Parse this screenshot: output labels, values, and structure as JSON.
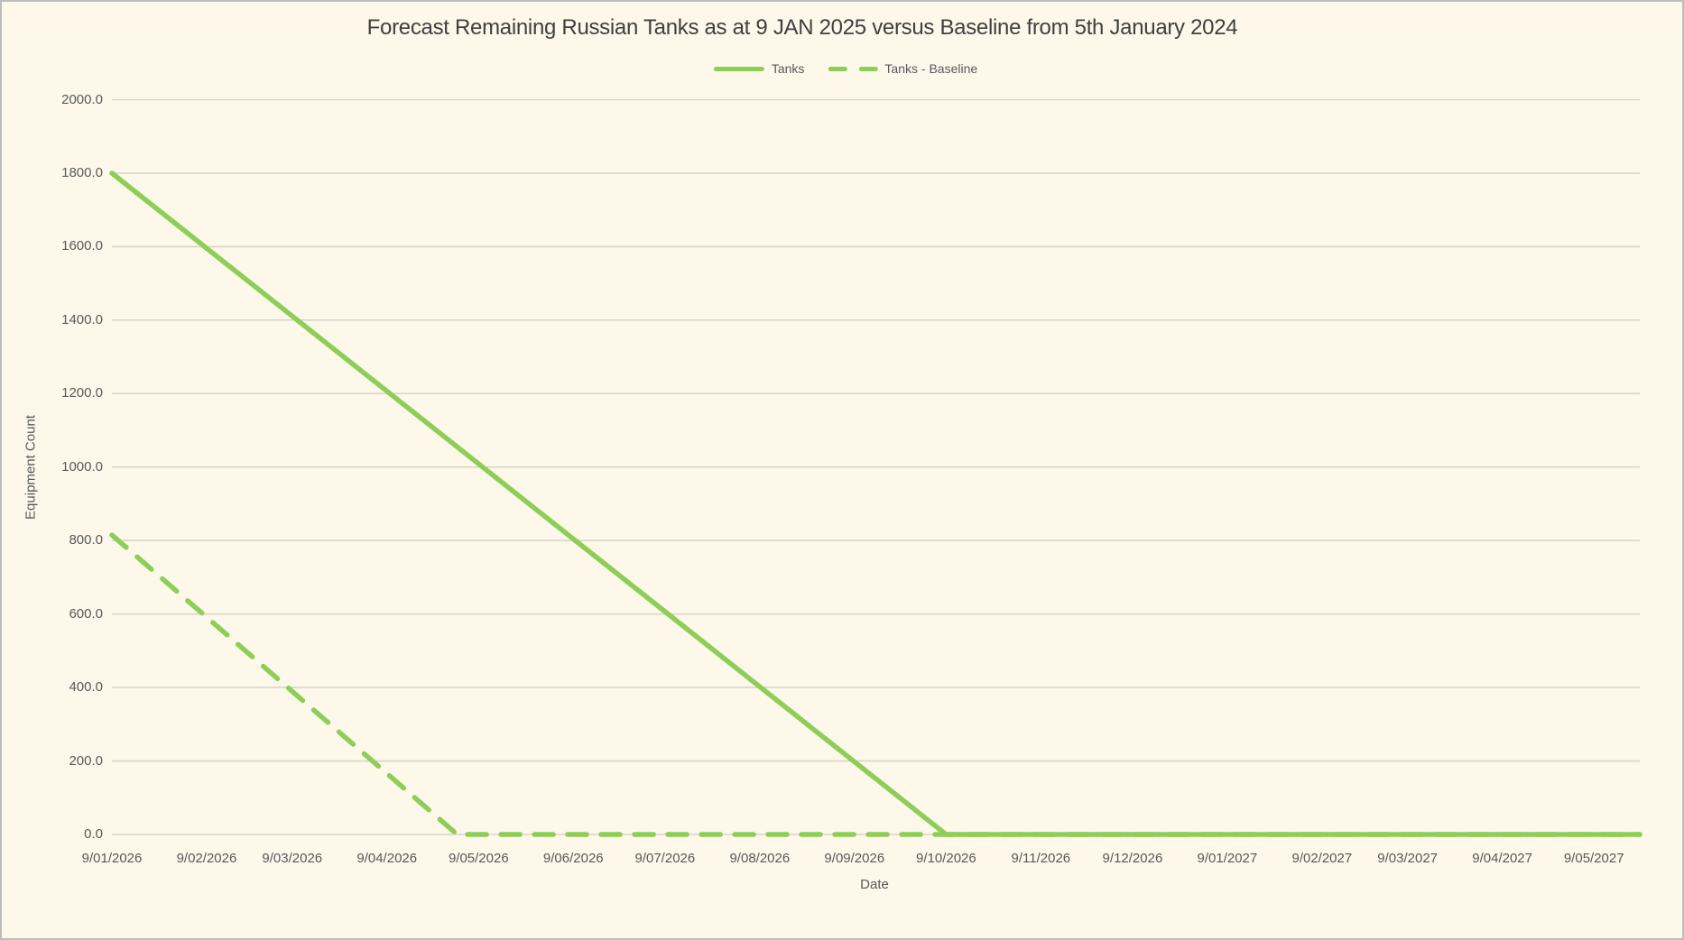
{
  "figure": {
    "title": "Forecast Remaining Russian Tanks as at 9 JAN 2025 versus Baseline from 5th January 2024"
  },
  "legend": {
    "items": [
      {
        "label": "Tanks",
        "style": "solid"
      },
      {
        "label": "Tanks - Baseline",
        "style": "dashed"
      }
    ]
  },
  "axes": {
    "x_title": "Date",
    "y_title": "Equipment Count"
  },
  "colors": {
    "series_green": "#8DCE58",
    "gridline": "#D8D5CE",
    "background": "#FDF8E9",
    "tick_text": "#595959",
    "title_text": "#404040"
  },
  "chart_data": {
    "type": "line",
    "title": "Forecast Remaining Russian Tanks as at 9 JAN 2025 versus Baseline from 5th January 2024",
    "xlabel": "Date",
    "ylabel": "Equipment Count",
    "ylim": [
      0,
      2000
    ],
    "ytick_step": 200,
    "ytick_labels": [
      "0.0",
      "200.0",
      "400.0",
      "600.0",
      "800.0",
      "1000.0",
      "1200.0",
      "1400.0",
      "1600.0",
      "1800.0",
      "2000.0"
    ],
    "grid": true,
    "legend_position": "top",
    "categories": [
      "9/01/2026",
      "9/02/2026",
      "9/03/2026",
      "9/04/2026",
      "9/05/2026",
      "9/06/2026",
      "9/07/2026",
      "9/08/2026",
      "9/09/2026",
      "9/10/2026",
      "9/11/2026",
      "9/12/2026",
      "9/01/2027",
      "9/02/2027",
      "9/03/2027",
      "9/04/2027",
      "9/05/2027"
    ],
    "tick_day_offsets": [
      0,
      31,
      59,
      90,
      120,
      151,
      181,
      212,
      243,
      273,
      304,
      334,
      365,
      396,
      424,
      455,
      485
    ],
    "day_span": [
      0,
      500
    ],
    "series": [
      {
        "name": "Tanks",
        "style": "solid",
        "color": "#8DCE58",
        "values": [
          1800,
          1596,
          1411,
          1207,
          1009,
          804,
          607,
          402,
          198,
          0,
          0,
          0,
          0,
          0,
          0,
          0,
          0
        ],
        "anchors_days": [
          [
            0,
            1800
          ],
          [
            273,
            0
          ],
          [
            500,
            0
          ]
        ]
      },
      {
        "name": "Tanks - Baseline",
        "style": "dashed",
        "color": "#8DCE58",
        "values": [
          815,
          591,
          390,
          166,
          0,
          0,
          0,
          0,
          0,
          0,
          0,
          0,
          0,
          0,
          0,
          0,
          0
        ],
        "anchors_days": [
          [
            0,
            815
          ],
          [
            113,
            0
          ],
          [
            500,
            0
          ]
        ]
      }
    ]
  }
}
